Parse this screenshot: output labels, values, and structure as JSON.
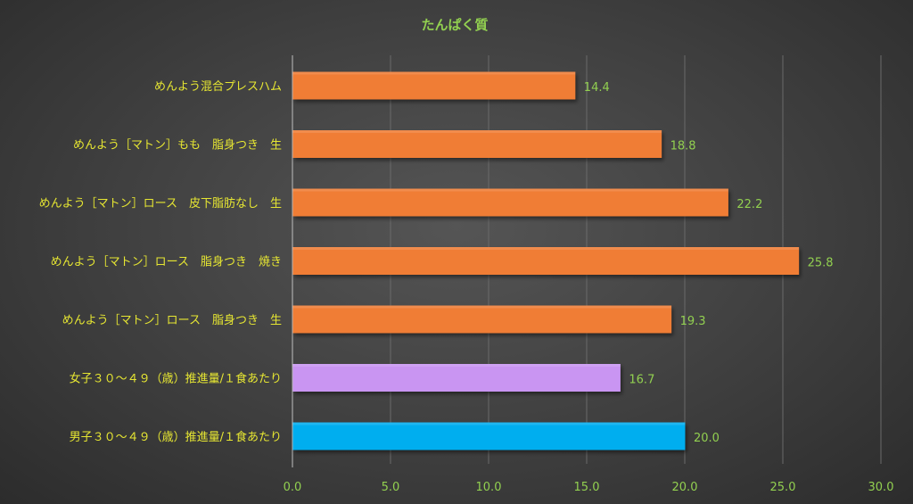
{
  "chart_data": {
    "type": "bar",
    "orientation": "horizontal",
    "title": "たんぱく質",
    "categories": [
      "めんよう混合プレスハム",
      "めんよう［マトン］もも　脂身つき　生",
      "めんよう［マトン］ロース　皮下脂肪なし　生",
      "めんよう［マトン］ロース　脂身つき　焼き",
      "めんよう［マトン］ロース　脂身つき　生",
      "女子３０～４９（歳）推進量/１食あたり",
      "男子３０～４９（歳）推進量/１食あたり"
    ],
    "values": [
      14.4,
      18.8,
      22.2,
      25.8,
      19.3,
      16.7,
      20.0
    ],
    "value_labels": [
      "14.4",
      "18.8",
      "22.2",
      "25.8",
      "19.3",
      "16.7",
      "20.0"
    ],
    "bar_colors": [
      "#f07d36",
      "#f07d36",
      "#f07d36",
      "#f07d36",
      "#f07d36",
      "#c995f2",
      "#00aeef"
    ],
    "xlim": [
      0,
      30
    ],
    "xticks": [
      0,
      5,
      10,
      15,
      20,
      25,
      30
    ],
    "xtick_labels": [
      "0.0",
      "5.0",
      "10.0",
      "15.0",
      "20.0",
      "25.0",
      "30.0"
    ],
    "grid": true,
    "legend": "none",
    "colors": {
      "title": "#92d050",
      "category_label": "#e6e632",
      "value_label": "#92d050",
      "tick_label": "#92d050",
      "grid": "#6a6a6a",
      "axis": "#bfbfbf"
    }
  }
}
